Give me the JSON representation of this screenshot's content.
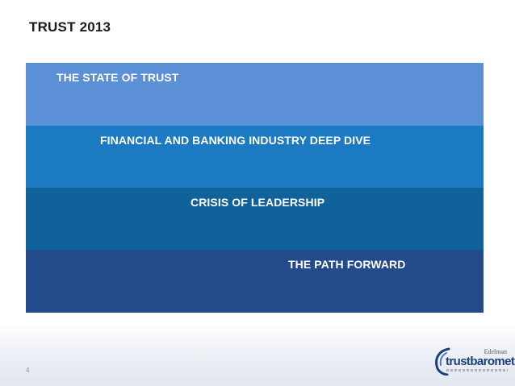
{
  "slide": {
    "title": "TRUST 2013",
    "page_number": "4"
  },
  "agenda": {
    "items": [
      {
        "label": "THE STATE OF TRUST"
      },
      {
        "label": "FINANCIAL AND BANKING INDUSTRY DEEP DIVE"
      },
      {
        "label": "CRISIS OF LEADERSHIP"
      },
      {
        "label": "THE PATH FORWARD"
      }
    ]
  },
  "logo": {
    "brand_small": "Edelman",
    "brand_main": "trustbarometer",
    "icon": "edelman-swoosh-icon"
  },
  "colors": {
    "band_1": "#5b8fd6",
    "band_2": "#1b7ac2",
    "band_3": "#10629a",
    "band_4": "#234b8c"
  }
}
